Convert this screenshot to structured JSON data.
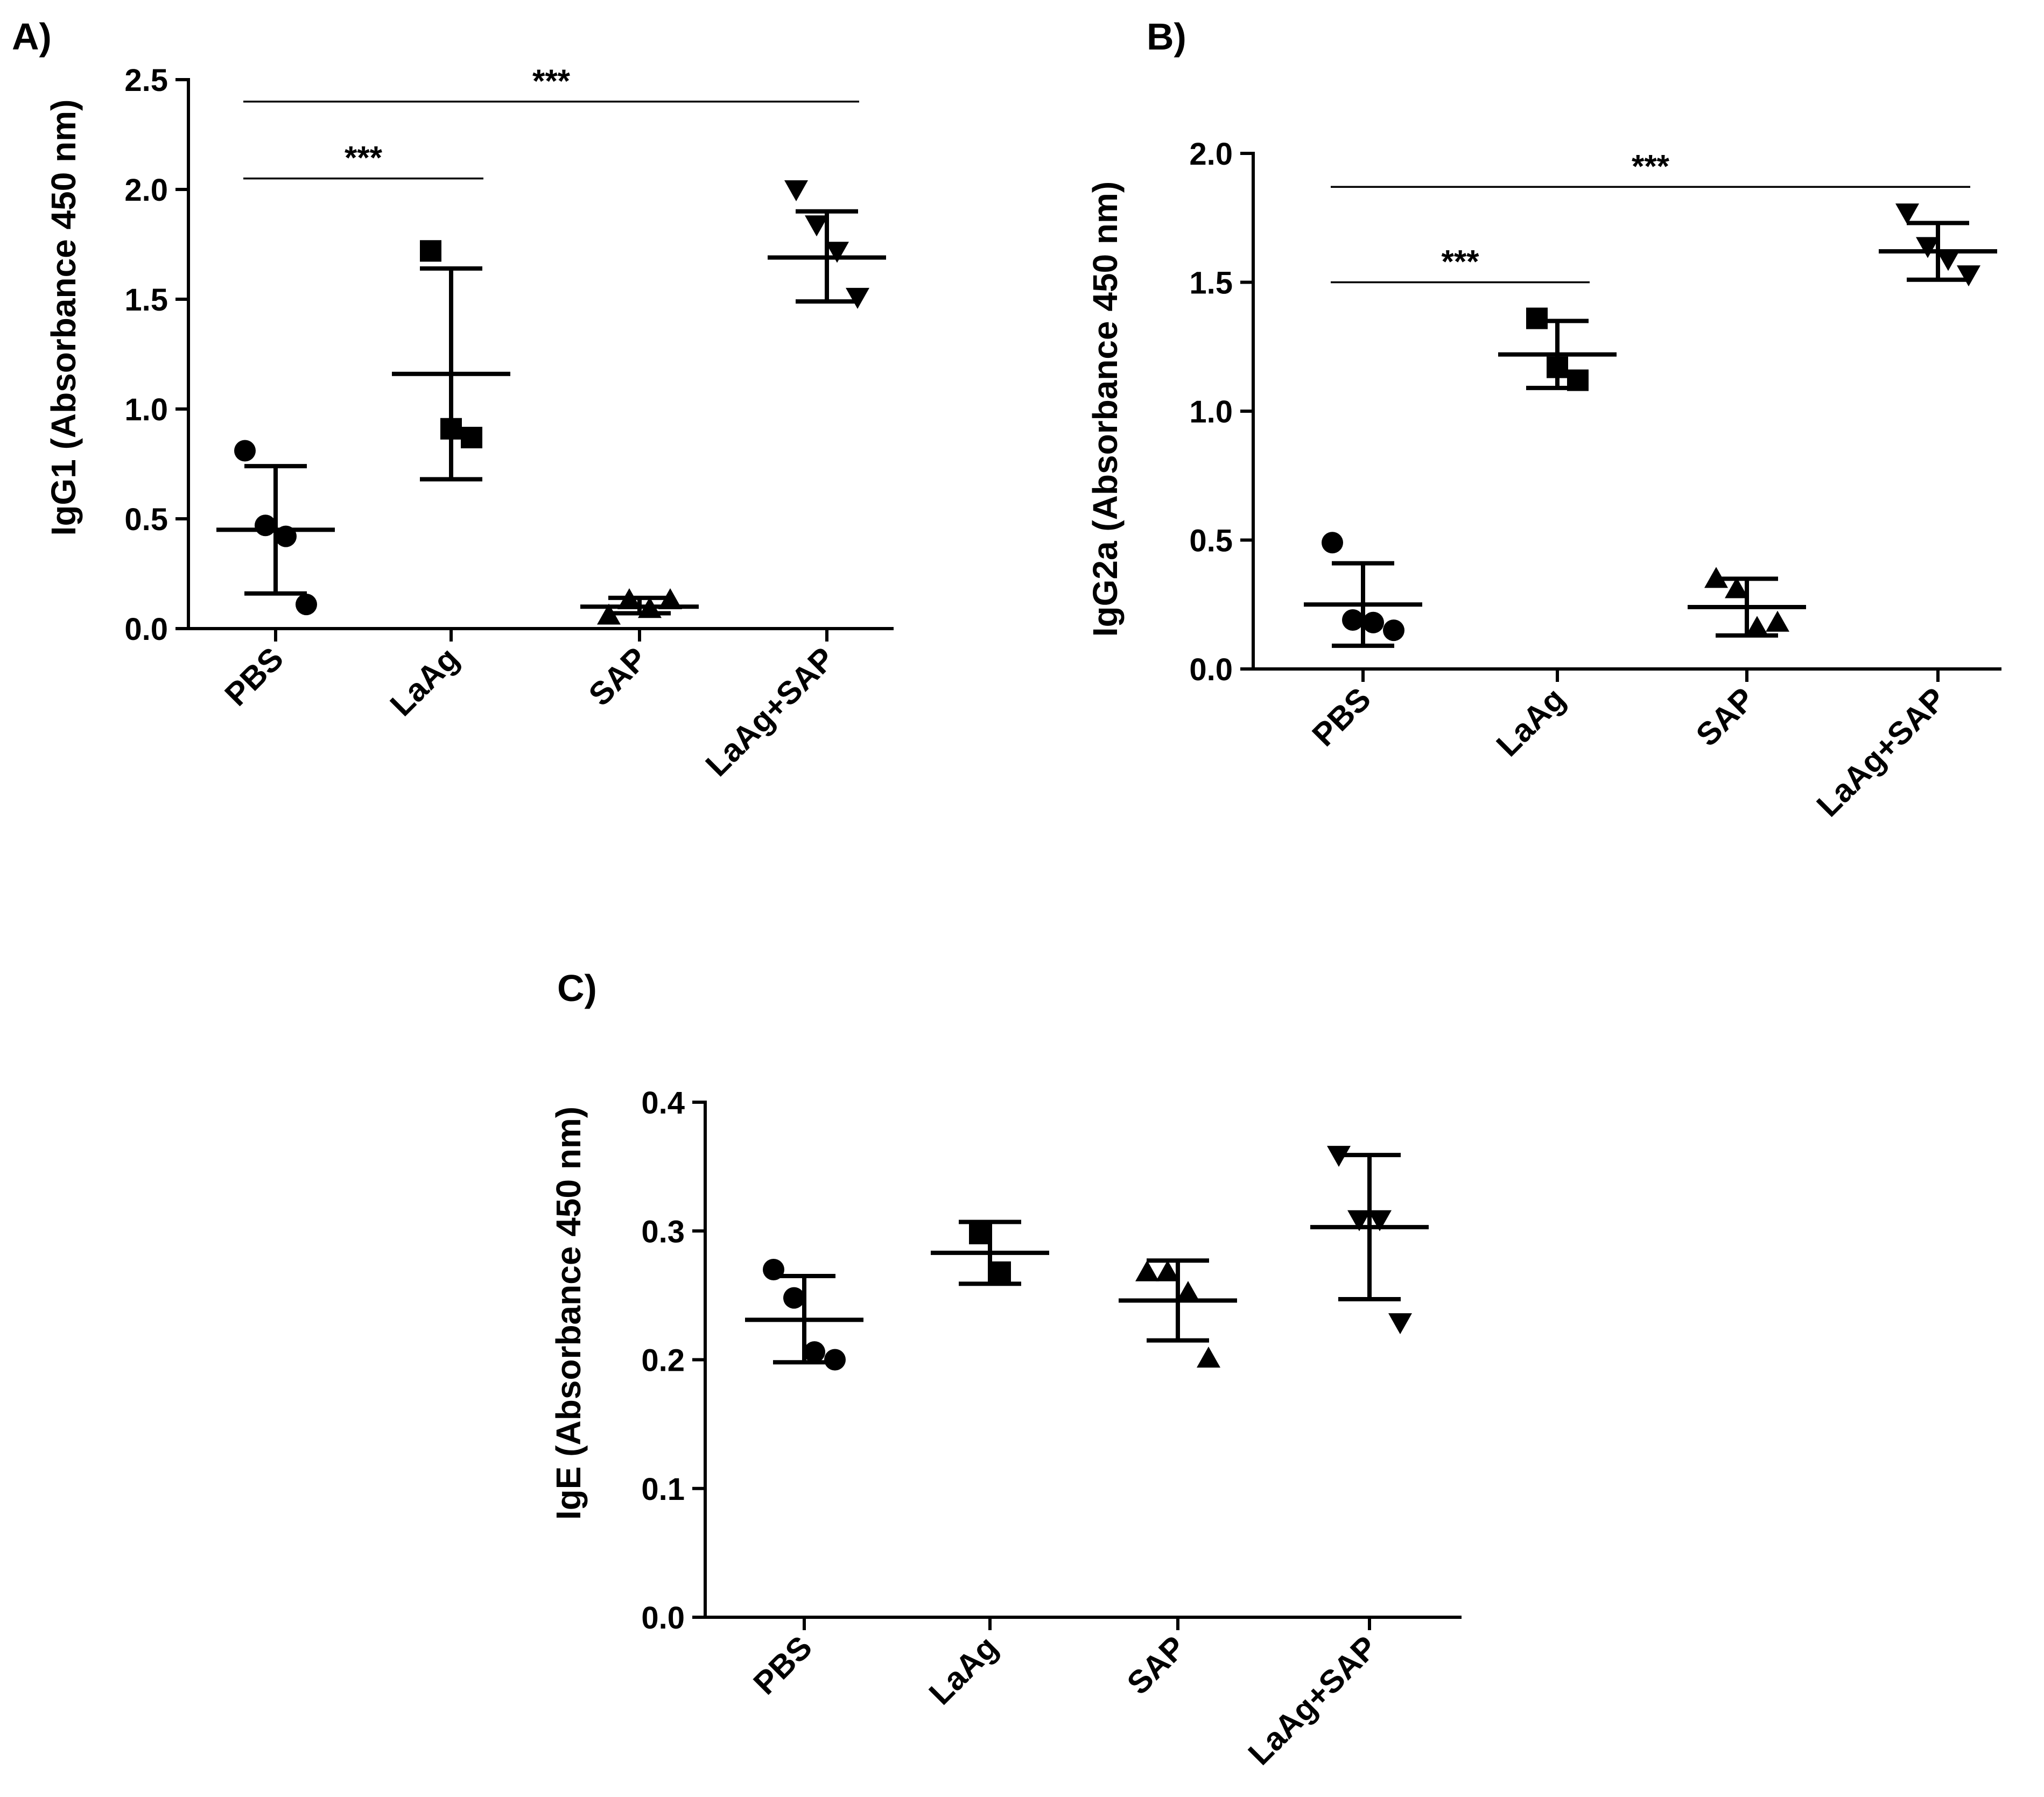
{
  "chart_data": [
    {
      "type": "scatter",
      "panel_label": "A)",
      "ylabel": "IgG1 (Absorbance 450 nm)",
      "ylim": [
        0,
        2.5
      ],
      "yticks": [
        "0.0",
        "0.5",
        "1.0",
        "1.5",
        "2.0",
        "2.5"
      ],
      "categories": [
        "PBS",
        "LaAg",
        "SAP",
        "LaAg+SAP"
      ],
      "groups": [
        {
          "name": "PBS",
          "marker": "circle",
          "points": [
            0.81,
            0.47,
            0.42,
            0.11
          ],
          "mean": 0.45,
          "upper": 0.74,
          "lower": 0.16
        },
        {
          "name": "LaAg",
          "marker": "square",
          "points": [
            1.72,
            0.91,
            0.87
          ],
          "mean": 1.16,
          "upper": 1.64,
          "lower": 0.68
        },
        {
          "name": "SAP",
          "marker": "triangle-up",
          "points": [
            0.06,
            0.13,
            0.09,
            0.13
          ],
          "mean": 0.1,
          "upper": 0.14,
          "lower": 0.07
        },
        {
          "name": "LaAg+SAP",
          "marker": "triangle-down",
          "points": [
            2.0,
            1.84,
            1.72,
            1.51
          ],
          "mean": 1.69,
          "upper": 1.9,
          "lower": 1.49
        }
      ],
      "significance": [
        {
          "from": 0,
          "to": 1,
          "level": 2.05,
          "label": "***"
        },
        {
          "from": 0,
          "to": 3,
          "level": 2.4,
          "label": "***"
        }
      ]
    },
    {
      "type": "scatter",
      "panel_label": "B)",
      "ylabel": "IgG2a (Absorbance 450 nm)",
      "ylim": [
        0,
        2.0
      ],
      "yticks": [
        "0.0",
        "0.5",
        "1.0",
        "1.5",
        "2.0"
      ],
      "categories": [
        "PBS",
        "LaAg",
        "SAP",
        "LaAg+SAP"
      ],
      "groups": [
        {
          "name": "PBS",
          "marker": "circle",
          "points": [
            0.49,
            0.19,
            0.18,
            0.15
          ],
          "mean": 0.25,
          "upper": 0.41,
          "lower": 0.09
        },
        {
          "name": "LaAg",
          "marker": "square",
          "points": [
            1.36,
            1.17,
            1.12
          ],
          "mean": 1.22,
          "upper": 1.35,
          "lower": 1.09
        },
        {
          "name": "SAP",
          "marker": "triangle-up",
          "points": [
            0.35,
            0.31,
            0.16,
            0.18
          ],
          "mean": 0.24,
          "upper": 0.35,
          "lower": 0.13
        },
        {
          "name": "LaAg+SAP",
          "marker": "triangle-down",
          "points": [
            1.77,
            1.64,
            1.59,
            1.53
          ],
          "mean": 1.62,
          "upper": 1.73,
          "lower": 1.51
        }
      ],
      "significance": [
        {
          "from": 0,
          "to": 1,
          "level": 1.5,
          "label": "***"
        },
        {
          "from": 0,
          "to": 3,
          "level": 1.87,
          "label": "***"
        }
      ]
    },
    {
      "type": "scatter",
      "panel_label": "C)",
      "ylabel": "IgE (Absorbance 450 nm)",
      "ylim": [
        0,
        0.4
      ],
      "yticks": [
        "0.0",
        "0.1",
        "0.2",
        "0.3",
        "0.4"
      ],
      "categories": [
        "PBS",
        "LaAg",
        "SAP",
        "LaAg+SAP"
      ],
      "groups": [
        {
          "name": "PBS",
          "marker": "circle",
          "points": [
            0.27,
            0.248,
            0.206,
            0.2
          ],
          "mean": 0.231,
          "upper": 0.265,
          "lower": 0.198
        },
        {
          "name": "LaAg",
          "marker": "square",
          "points": [
            0.298,
            0.268
          ],
          "mean": 0.283,
          "upper": 0.307,
          "lower": 0.259
        },
        {
          "name": "SAP",
          "marker": "triangle-up",
          "points": [
            0.268,
            0.268,
            0.252,
            0.201
          ],
          "mean": 0.246,
          "upper": 0.277,
          "lower": 0.215
        },
        {
          "name": "LaAg+SAP",
          "marker": "triangle-down",
          "points": [
            0.359,
            0.309,
            0.309,
            0.229
          ],
          "mean": 0.303,
          "upper": 0.359,
          "lower": 0.247
        }
      ],
      "significance": []
    }
  ]
}
